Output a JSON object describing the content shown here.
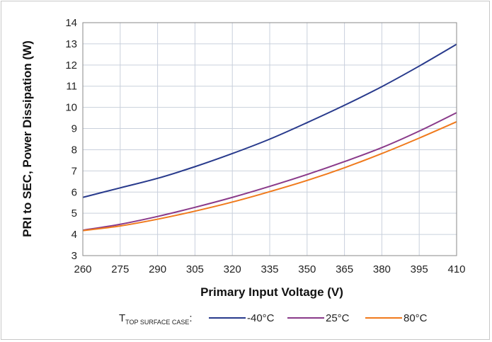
{
  "chart_data": {
    "type": "line",
    "xlabel": "Primary Input Voltage (V)",
    "ylabel": "PRI to SEC, Power Dissipation (W)",
    "xlim": [
      260,
      410
    ],
    "ylim": [
      3,
      14
    ],
    "x_ticks": [
      260,
      275,
      290,
      305,
      320,
      335,
      350,
      365,
      380,
      395,
      410
    ],
    "y_ticks": [
      3,
      4,
      5,
      6,
      7,
      8,
      9,
      10,
      11,
      12,
      13,
      14
    ],
    "grid": true,
    "legend_position": "bottom",
    "legend_label_main": "T",
    "legend_label_sub": "TOP SURFACE CASE",
    "legend_label_suffix": ":",
    "x": [
      260,
      275,
      290,
      305,
      320,
      335,
      350,
      365,
      380,
      395,
      410
    ],
    "series": [
      {
        "name": "-40°C",
        "color": "#283a8c",
        "values": [
          5.75,
          6.2,
          6.65,
          7.2,
          7.82,
          8.5,
          9.28,
          10.1,
          10.98,
          11.95,
          12.98
        ]
      },
      {
        "name": "25°C",
        "color": "#8a3a8a",
        "values": [
          4.2,
          4.48,
          4.85,
          5.28,
          5.75,
          6.27,
          6.83,
          7.44,
          8.1,
          8.88,
          9.75
        ]
      },
      {
        "name": "80°C",
        "color": "#f07a1c",
        "values": [
          4.18,
          4.4,
          4.72,
          5.1,
          5.53,
          6.02,
          6.55,
          7.15,
          7.82,
          8.55,
          9.32
        ]
      }
    ]
  }
}
